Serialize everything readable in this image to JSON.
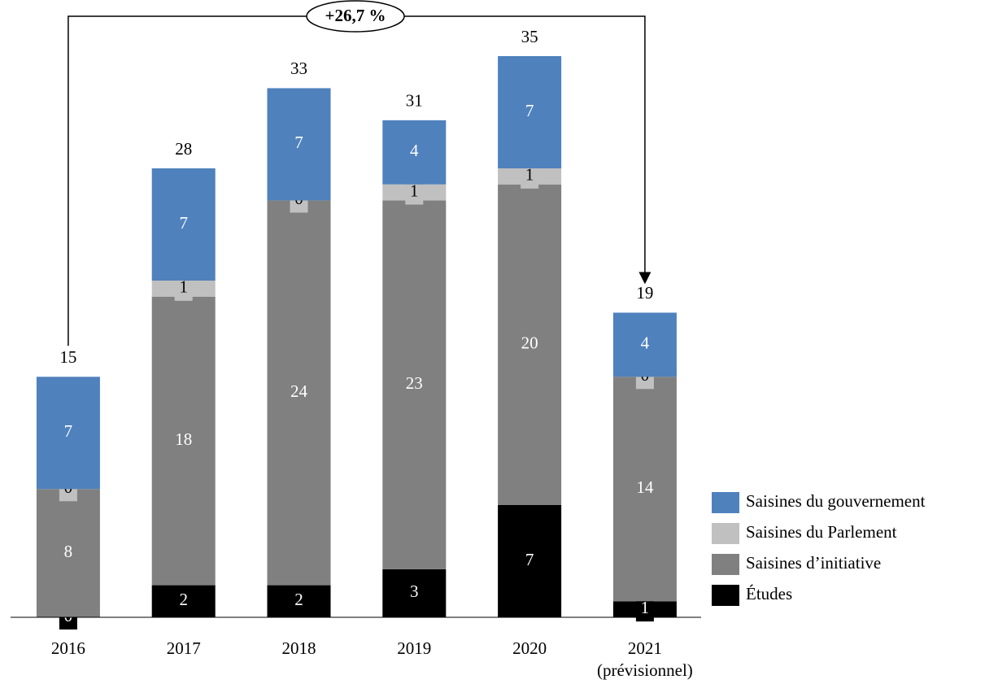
{
  "chart_data": {
    "type": "stacked_bar",
    "categories": [
      "2016",
      "2017",
      "2018",
      "2019",
      "2020",
      "2021 (prévisionnel)"
    ],
    "series": [
      {
        "name": "Études",
        "color": "#000000",
        "values": [
          0,
          2,
          2,
          3,
          7,
          1
        ]
      },
      {
        "name": "Saisines d’initiative",
        "color": "#808080",
        "values": [
          8,
          18,
          24,
          23,
          20,
          14
        ]
      },
      {
        "name": "Saisines du Parlement",
        "color": "#c0c0c0",
        "values": [
          0,
          1,
          0,
          1,
          1,
          0
        ]
      },
      {
        "name": "Saisines du gouvernement",
        "color": "#4f81bd",
        "values": [
          7,
          7,
          7,
          4,
          7,
          4
        ]
      }
    ],
    "totals": [
      15,
      28,
      33,
      31,
      35,
      19
    ],
    "annotation": "+26,7 %",
    "ylim": [
      0,
      35
    ],
    "legend": "right"
  }
}
